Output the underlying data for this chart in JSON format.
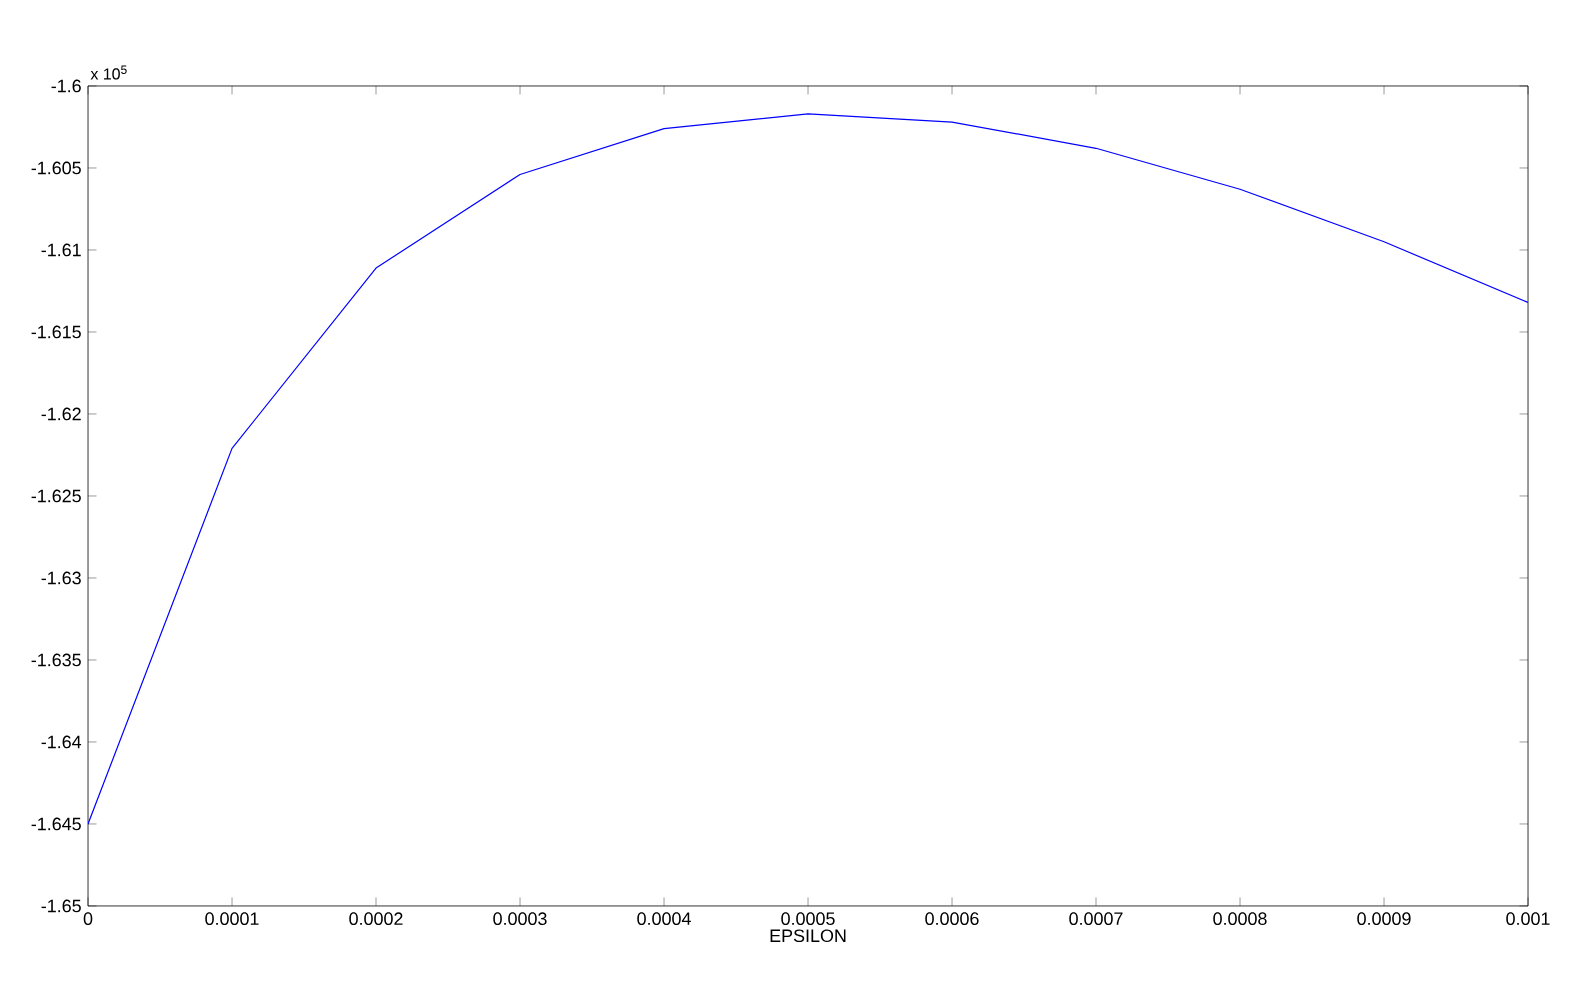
{
  "chart_data": {
    "type": "line",
    "xlabel": "EPSILON",
    "annotations": [
      "x 10$^{5}$"
    ],
    "x": [
      0,
      0.0001,
      0.0002,
      0.0003,
      0.0004,
      0.0005,
      0.0006,
      0.0007,
      0.0008,
      0.0009,
      0.001
    ],
    "series": [
      {
        "color": "#0000ff",
        "values": [
          -1.645,
          -1.6221,
          -1.6111,
          -1.6054,
          -1.6026,
          -1.6017,
          -1.6022,
          -1.6038,
          -1.6063,
          -1.6095,
          -1.6132
        ]
      }
    ],
    "xlim": [
      0,
      0.001
    ],
    "ylim": [
      -1.65,
      -1.6
    ],
    "xticks": [
      0,
      0.0001,
      0.0002,
      0.0003,
      0.0004,
      0.0005,
      0.0006,
      0.0007,
      0.0008,
      0.0009,
      0.001
    ],
    "yticks": [
      -1.65,
      -1.645,
      -1.64,
      -1.635,
      -1.63,
      -1.625,
      -1.62,
      -1.615,
      -1.61,
      -1.605,
      -1.6
    ],
    "grid": false,
    "marker": "none",
    "line_style": "solid"
  }
}
